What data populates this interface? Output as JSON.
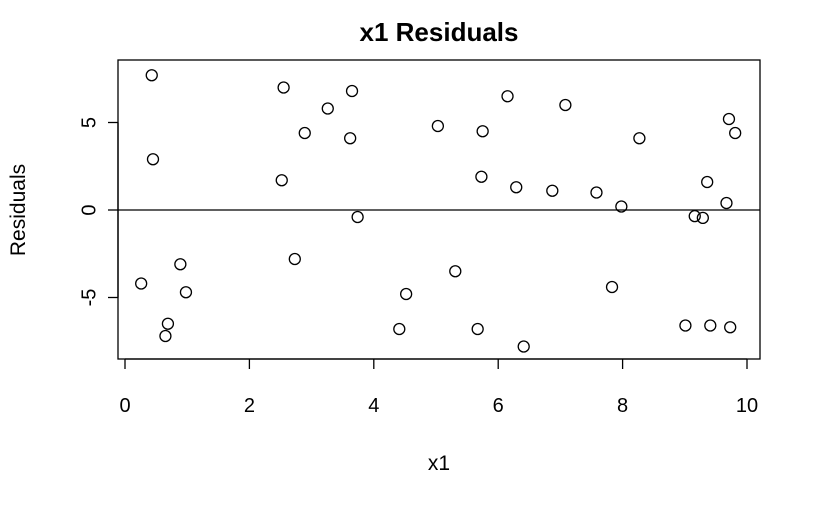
{
  "chart_data": {
    "type": "scatter",
    "title": "x1 Residuals",
    "xlabel": "x1",
    "ylabel": "Residuals",
    "xlim": [
      0,
      10
    ],
    "ylim": [
      -8,
      8
    ],
    "xticks": [
      0,
      2,
      4,
      6,
      8,
      10
    ],
    "yticks": [
      -5,
      0,
      5
    ],
    "reference_line_y": 0,
    "grid": false,
    "marker": "open-circle",
    "series": [
      {
        "x": [
          0.43,
          0.45,
          0.26,
          0.65,
          0.69,
          0.89,
          0.98,
          2.52,
          2.55,
          2.73,
          2.89,
          3.26,
          3.62,
          3.65,
          3.74,
          4.41,
          4.52,
          5.03,
          5.31,
          5.67,
          5.73,
          5.75,
          6.15,
          6.29,
          6.41,
          6.87,
          7.08,
          7.58,
          7.83,
          7.98,
          8.27,
          9.01,
          9.16,
          9.29,
          9.36,
          9.41,
          9.67,
          9.71,
          9.73,
          9.81
        ],
        "y": [
          7.7,
          2.9,
          -4.2,
          -7.2,
          -6.5,
          -3.1,
          -4.7,
          1.7,
          7.0,
          -2.8,
          4.4,
          5.8,
          4.1,
          6.8,
          -0.4,
          -6.8,
          -4.8,
          4.8,
          -3.5,
          -6.8,
          1.9,
          4.5,
          6.5,
          1.3,
          -7.8,
          1.1,
          6.0,
          1.0,
          -4.4,
          0.2,
          4.1,
          -6.6,
          -0.35,
          -0.45,
          1.6,
          -6.6,
          0.4,
          5.2,
          -6.7,
          4.4
        ]
      }
    ]
  }
}
